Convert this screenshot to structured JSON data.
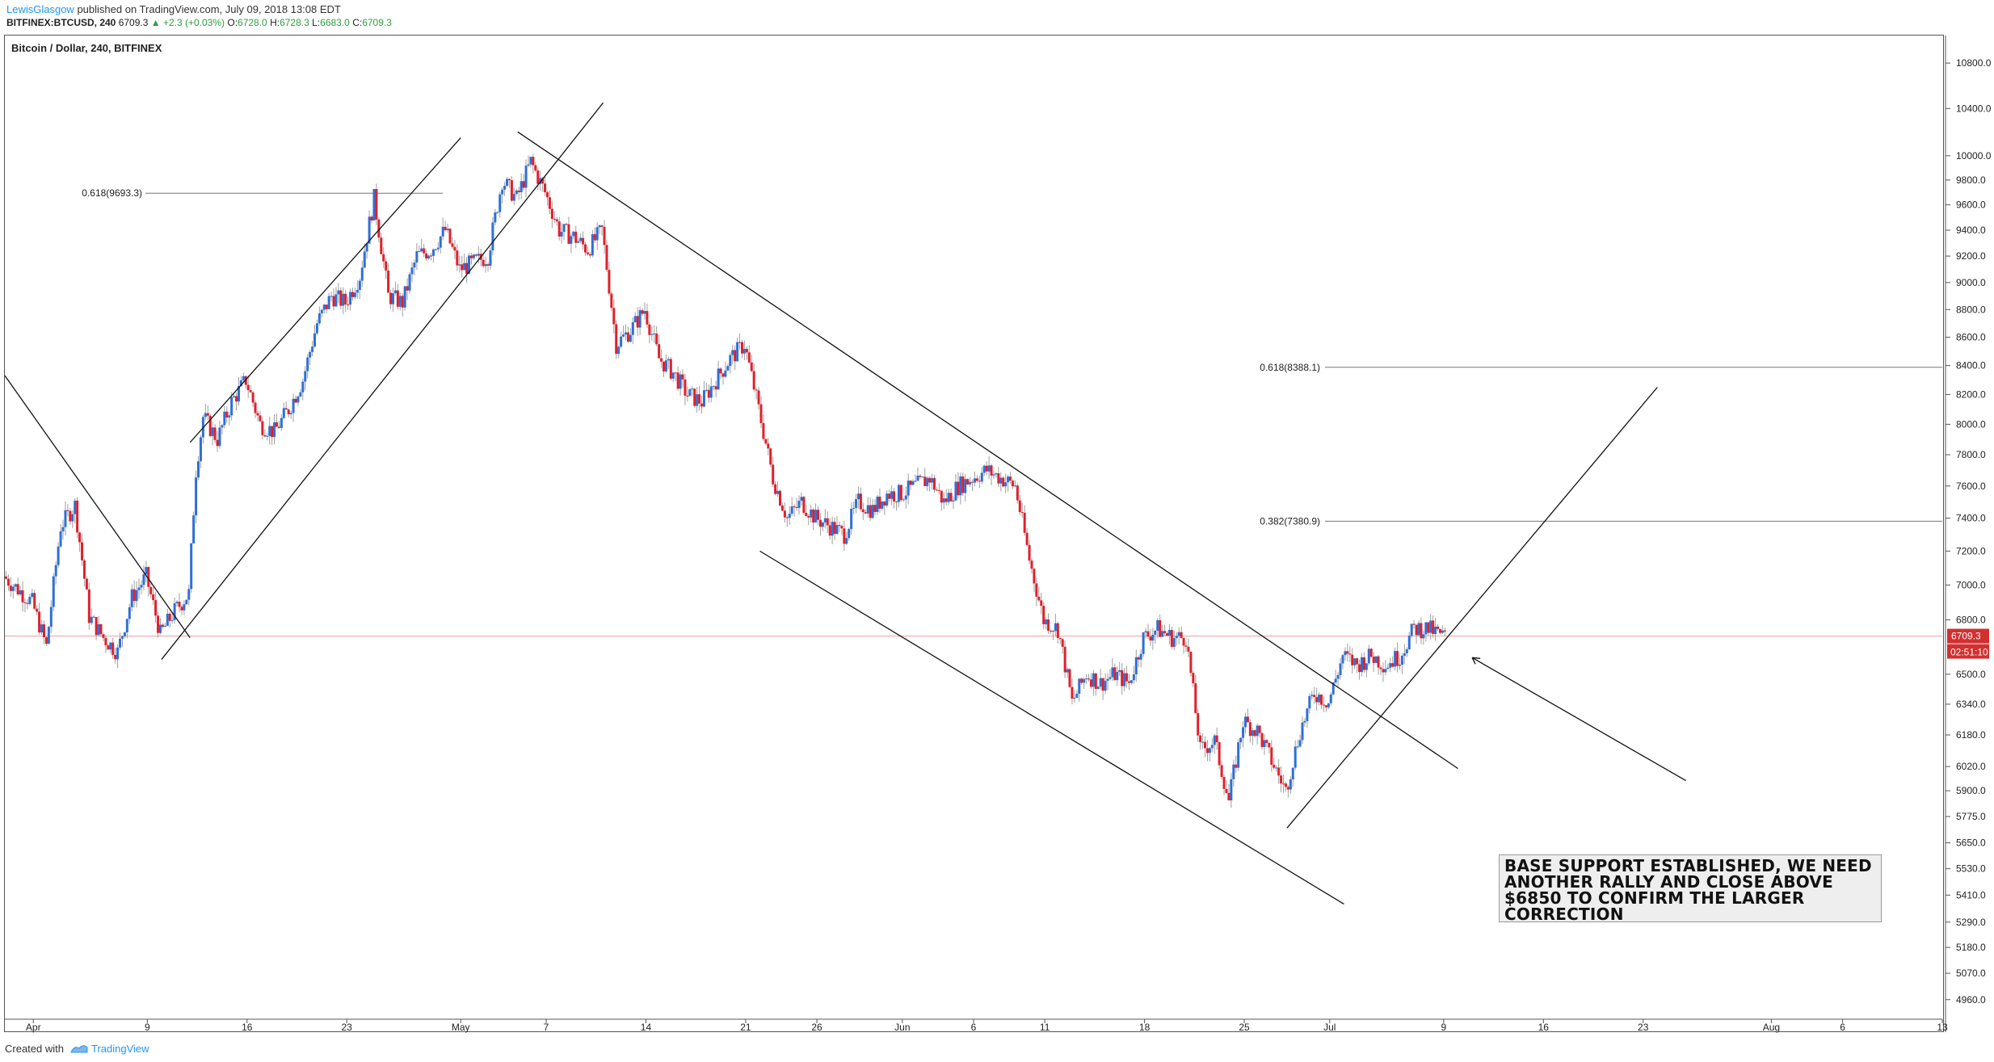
{
  "header": {
    "author": "LewisGlasgow",
    "published": "published on TradingView.com, July 09, 2018 13:08 EDT",
    "symbol": "BITFINEX:BTCUSD, 240",
    "last": "6709.3",
    "change": "▲ +2.3 (+0.03%)",
    "o_label": "O:",
    "o_value": "6728.0",
    "h_label": "H:",
    "h_value": "6728.3",
    "l_label": "L:",
    "l_value": "6683.0",
    "c_label": "C:",
    "c_value": "6709.3"
  },
  "footer": {
    "created_with": "Created with",
    "brand": "TradingView"
  },
  "colors": {
    "up": "#2e6fd8",
    "down": "#e0202a",
    "line": "#111111",
    "fib": "#777777",
    "price_badge": "#d32f2f"
  },
  "chart_data": {
    "type": "candlestick",
    "title": "Bitcoin / Dollar, 240, BITFINEX",
    "y_axis": {
      "scale": "log",
      "range": [
        4880,
        11050
      ],
      "ticks": [
        10800,
        10400,
        10000,
        9800,
        9600,
        9400,
        9200,
        9000,
        8800,
        8600,
        8400,
        8200,
        8000,
        7800,
        7600,
        7400,
        7200,
        7000,
        6800,
        6500,
        6340,
        6180,
        6020,
        5900,
        5775,
        5650,
        5530,
        5410,
        5290,
        5180,
        5070,
        4960
      ],
      "tick_labels": [
        "10800.0",
        "10400.0",
        "10000.0",
        "9800.0",
        "9600.0",
        "9400.0",
        "9200.0",
        "9000.0",
        "8800.0",
        "8600.0",
        "8400.0",
        "8200.0",
        "8000.0",
        "7800.0",
        "7600.0",
        "7400.0",
        "7200.0",
        "7000.0",
        "6800.0",
        "6500.0",
        "6340.0",
        "6180.0",
        "6020.0",
        "5900.0",
        "5775.0",
        "5650.0",
        "5530.0",
        "5410.0",
        "5290.0",
        "5180.0",
        "5070.0",
        "4960.0"
      ]
    },
    "x_axis": {
      "range": [
        "2018-03-30",
        "2018-08-13"
      ],
      "ticks": [
        {
          "date": "2018-04-01",
          "label": "Apr"
        },
        {
          "date": "2018-04-09",
          "label": "9"
        },
        {
          "date": "2018-04-16",
          "label": "16"
        },
        {
          "date": "2018-04-23",
          "label": "23"
        },
        {
          "date": "2018-05-01",
          "label": "May"
        },
        {
          "date": "2018-05-07",
          "label": "7"
        },
        {
          "date": "2018-05-14",
          "label": "14"
        },
        {
          "date": "2018-05-21",
          "label": "21"
        },
        {
          "date": "2018-05-26",
          "label": "26"
        },
        {
          "date": "2018-06-01",
          "label": "Jun"
        },
        {
          "date": "2018-06-06",
          "label": "6"
        },
        {
          "date": "2018-06-11",
          "label": "11"
        },
        {
          "date": "2018-06-18",
          "label": "18"
        },
        {
          "date": "2018-06-25",
          "label": "25"
        },
        {
          "date": "2018-07-01",
          "label": "Jul"
        },
        {
          "date": "2018-07-09",
          "label": "9"
        },
        {
          "date": "2018-07-16",
          "label": "16"
        },
        {
          "date": "2018-07-23",
          "label": "23"
        },
        {
          "date": "2018-08-01",
          "label": "Aug"
        },
        {
          "date": "2018-08-06",
          "label": "6"
        },
        {
          "date": "2018-08-13",
          "label": "13"
        }
      ]
    },
    "path": [
      [
        "2018-03-30",
        7050
      ],
      [
        "2018-04-01",
        6900
      ],
      [
        "2018-04-02",
        6650
      ],
      [
        "2018-04-03",
        7350
      ],
      [
        "2018-04-04",
        7480
      ],
      [
        "2018-04-05",
        6820
      ],
      [
        "2018-04-06",
        6700
      ],
      [
        "2018-04-07",
        6620
      ],
      [
        "2018-04-08",
        6930
      ],
      [
        "2018-04-09",
        7050
      ],
      [
        "2018-04-10",
        6720
      ],
      [
        "2018-04-11",
        6850
      ],
      [
        "2018-04-12",
        6950
      ],
      [
        "2018-04-12T12",
        7700
      ],
      [
        "2018-04-13",
        8050
      ],
      [
        "2018-04-14",
        7900
      ],
      [
        "2018-04-15",
        8150
      ],
      [
        "2018-04-16",
        8300
      ],
      [
        "2018-04-17",
        8000
      ],
      [
        "2018-04-18",
        7950
      ],
      [
        "2018-04-19",
        8100
      ],
      [
        "2018-04-20",
        8300
      ],
      [
        "2018-04-21",
        8700
      ],
      [
        "2018-04-22",
        8900
      ],
      [
        "2018-04-23",
        8850
      ],
      [
        "2018-04-24",
        9050
      ],
      [
        "2018-04-25",
        9650
      ],
      [
        "2018-04-26",
        8900
      ],
      [
        "2018-04-27",
        8850
      ],
      [
        "2018-04-28",
        9200
      ],
      [
        "2018-04-29",
        9250
      ],
      [
        "2018-04-30",
        9400
      ],
      [
        "2018-05-01",
        9100
      ],
      [
        "2018-05-02",
        9150
      ],
      [
        "2018-05-03",
        9200
      ],
      [
        "2018-05-04",
        9800
      ],
      [
        "2018-05-05",
        9650
      ],
      [
        "2018-05-06",
        9950
      ],
      [
        "2018-05-07",
        9700
      ],
      [
        "2018-05-08",
        9400
      ],
      [
        "2018-05-09",
        9350
      ],
      [
        "2018-05-10",
        9250
      ],
      [
        "2018-05-11",
        9400
      ],
      [
        "2018-05-12",
        8550
      ],
      [
        "2018-05-13",
        8650
      ],
      [
        "2018-05-14",
        8800
      ],
      [
        "2018-05-15",
        8450
      ],
      [
        "2018-05-16",
        8350
      ],
      [
        "2018-05-17",
        8200
      ],
      [
        "2018-05-18",
        8150
      ],
      [
        "2018-05-19",
        8300
      ],
      [
        "2018-05-20",
        8450
      ],
      [
        "2018-05-21",
        8550
      ],
      [
        "2018-05-22",
        8100
      ],
      [
        "2018-05-23",
        7650
      ],
      [
        "2018-05-24",
        7400
      ],
      [
        "2018-05-25",
        7500
      ],
      [
        "2018-05-26",
        7400
      ],
      [
        "2018-05-27",
        7350
      ],
      [
        "2018-05-28",
        7300
      ],
      [
        "2018-05-29",
        7500
      ],
      [
        "2018-05-30",
        7450
      ],
      [
        "2018-05-31",
        7550
      ],
      [
        "2018-06-01",
        7550
      ],
      [
        "2018-06-02",
        7600
      ],
      [
        "2018-06-03",
        7650
      ],
      [
        "2018-06-04",
        7500
      ],
      [
        "2018-06-05",
        7600
      ],
      [
        "2018-06-06",
        7650
      ],
      [
        "2018-06-07",
        7700
      ],
      [
        "2018-06-08",
        7650
      ],
      [
        "2018-06-09",
        7600
      ],
      [
        "2018-06-10",
        7150
      ],
      [
        "2018-06-11",
        6800
      ],
      [
        "2018-06-12",
        6750
      ],
      [
        "2018-06-13",
        6350
      ],
      [
        "2018-06-14",
        6500
      ],
      [
        "2018-06-15",
        6450
      ],
      [
        "2018-06-16",
        6500
      ],
      [
        "2018-06-17",
        6450
      ],
      [
        "2018-06-18",
        6700
      ],
      [
        "2018-06-19",
        6750
      ],
      [
        "2018-06-20",
        6700
      ],
      [
        "2018-06-21",
        6700
      ],
      [
        "2018-06-22",
        6100
      ],
      [
        "2018-06-23",
        6150
      ],
      [
        "2018-06-24",
        5850
      ],
      [
        "2018-06-25",
        6250
      ],
      [
        "2018-06-26",
        6200
      ],
      [
        "2018-06-27",
        6050
      ],
      [
        "2018-06-28",
        5900
      ],
      [
        "2018-06-29",
        6200
      ],
      [
        "2018-06-30",
        6400
      ],
      [
        "2018-07-01",
        6350
      ],
      [
        "2018-07-02",
        6600
      ],
      [
        "2018-07-03",
        6550
      ],
      [
        "2018-07-04",
        6600
      ],
      [
        "2018-07-05",
        6550
      ],
      [
        "2018-07-06",
        6600
      ],
      [
        "2018-07-07",
        6750
      ],
      [
        "2018-07-08",
        6750
      ],
      [
        "2018-07-09",
        6709.3
      ]
    ],
    "last_price": "6709.3",
    "countdown": "02:51:10",
    "fib_levels": [
      {
        "label": "0.618(9693.3)",
        "value": 9693.3
      },
      {
        "label": "0.618(8388.1)",
        "value": 8388.1
      },
      {
        "label": "0.382(7380.9)",
        "value": 7380.9
      }
    ],
    "annotation": "BASE SUPPORT ESTABLISHED, WE NEED ANOTHER RALLY AND CLOSE ABOVE $6850 TO CONFIRM THE LARGER CORRECTION"
  }
}
